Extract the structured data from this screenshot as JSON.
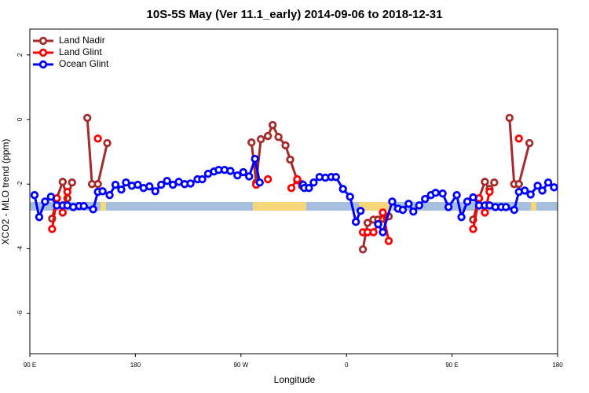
{
  "chart_data": {
    "type": "line",
    "title": "10S-5S May (Ver 11.1_early)   2014-09-06 to 2018-12-31",
    "x_label": "Longitude",
    "y_label": "XCO2 - MLO trend (ppm)",
    "xlim": [
      90,
      540
    ],
    "ylim": [
      -7.25,
      2.8
    ],
    "xticks": [
      {
        "value": 90,
        "label": "90 E"
      },
      180,
      {
        "value": 270,
        "label": "90 W"
      },
      {
        "value": 360,
        "label": "0"
      },
      {
        "value": 450,
        "label": "90 E"
      },
      180
    ],
    "yticks": [
      -6,
      -4,
      -2,
      0,
      2
    ],
    "legend": "top-left",
    "series": [
      {
        "name": "Land Nadir",
        "color": "#a52a2a",
        "x": [
          109,
          113,
          118,
          122,
          126,
          null,
          139,
          143,
          148,
          156,
          null,
          279,
          283,
          287,
          293,
          297,
          302,
          308,
          312,
          318,
          322,
          null,
          374,
          378,
          383,
          387,
          391,
          396,
          null,
          468,
          473,
          478,
          482,
          486,
          null,
          499,
          503,
          507,
          516
        ],
        "values": [
          -3.07,
          -2.44,
          -1.93,
          -2.44,
          -1.95,
          null,
          0.05,
          -2.0,
          -2.0,
          -0.73,
          null,
          -0.71,
          -1.95,
          -0.61,
          -0.51,
          -0.17,
          -0.54,
          -0.8,
          -1.24,
          -1.88,
          -2.05,
          null,
          -4.02,
          -3.2,
          -3.1,
          -3.1,
          -3.07,
          -3.0,
          null,
          -3.1,
          -2.44,
          -1.93,
          -2.15,
          -1.95,
          null,
          0.05,
          -2.0,
          -2.0,
          -0.73
        ]
      },
      {
        "name": "Land Glint",
        "color": "#ff0000",
        "x": [
          109,
          113,
          118,
          122,
          null,
          148,
          null,
          283,
          null,
          293,
          null,
          313,
          318,
          322,
          null,
          374,
          378,
          383,
          387,
          391,
          396,
          null,
          468,
          473,
          478,
          482,
          null,
          507
        ],
        "values": [
          -3.39,
          -2.44,
          -2.88,
          -2.24,
          null,
          -0.59,
          null,
          -2.02,
          null,
          -1.85,
          null,
          -2.12,
          -1.85,
          -2.0,
          null,
          -3.49,
          -3.49,
          -3.49,
          -3.24,
          -2.88,
          -3.76,
          null,
          -3.39,
          -2.44,
          -2.88,
          -2.24,
          null,
          -0.59
        ]
      },
      {
        "name": "Ocean Glint",
        "color": "#0000ff",
        "x": [
          94,
          98,
          103,
          108,
          113,
          118,
          122,
          127,
          132,
          136,
          144,
          148,
          152,
          158,
          163,
          168,
          172,
          177,
          182,
          187,
          192,
          197,
          202,
          207,
          212,
          217,
          222,
          227,
          233,
          237,
          242,
          247,
          251,
          256,
          261,
          267,
          272,
          277,
          282,
          286,
          null,
          323,
          324,
          328,
          332,
          337,
          342,
          347,
          351,
          357,
          363,
          368,
          372,
          null,
          387,
          391,
          399,
          404,
          408,
          413,
          417,
          422,
          427,
          432,
          436,
          442,
          447,
          454,
          458,
          463,
          468,
          473,
          478,
          482,
          487,
          492,
          496,
          503,
          507,
          512,
          517,
          523,
          527,
          532,
          537
        ],
        "values": [
          -2.34,
          -3.02,
          -2.54,
          -2.39,
          -2.66,
          -2.66,
          -2.66,
          -2.71,
          -2.68,
          -2.68,
          -2.78,
          -2.24,
          -2.22,
          -2.34,
          -2.02,
          -2.17,
          -1.95,
          -2.05,
          -2.02,
          -2.12,
          -2.07,
          -2.22,
          -2.02,
          -1.9,
          -2.02,
          -1.93,
          -2.0,
          -1.98,
          -1.85,
          -1.85,
          -1.68,
          -1.61,
          -1.56,
          -1.56,
          -1.59,
          -1.73,
          -1.63,
          -1.76,
          -1.22,
          -1.95,
          null,
          -2.02,
          -2.12,
          -2.12,
          -1.95,
          -1.78,
          -1.8,
          -1.78,
          -1.78,
          -2.15,
          -2.39,
          -3.17,
          -2.83,
          null,
          -3.24,
          -3.49,
          -2.54,
          -2.76,
          -2.8,
          -2.61,
          -2.85,
          -2.66,
          -2.46,
          -2.34,
          -2.27,
          -2.29,
          -2.71,
          -2.34,
          -3.02,
          -2.54,
          -2.41,
          -2.66,
          -2.66,
          -2.66,
          -2.71,
          -2.71,
          -2.71,
          -2.8,
          -2.24,
          -2.2,
          -2.32,
          -2.05,
          -2.2,
          -1.95,
          -2.1
        ]
      }
    ]
  }
}
